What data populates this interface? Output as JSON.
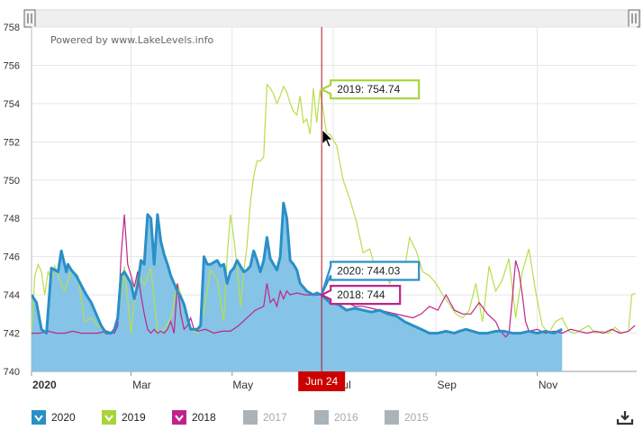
{
  "attribution": "Powered by www.LakeLevels.info",
  "navigator": {
    "left_handle": "navigator-left-handle",
    "right_handle": "navigator-right-handle"
  },
  "crosshair": {
    "date_label": "Jun 24"
  },
  "tooltips": [
    {
      "series": "2019",
      "text": "2019: 754.74",
      "color": "#a8d43a"
    },
    {
      "series": "2020",
      "text": "2020: 744.03",
      "color": "#2a8fc7"
    },
    {
      "series": "2018",
      "text": "2018: 744",
      "color": "#c0248a"
    }
  ],
  "legend": [
    {
      "label": "2020",
      "color": "#2a8fc7",
      "visible": true
    },
    {
      "label": "2019",
      "color": "#a8d43a",
      "visible": true
    },
    {
      "label": "2018",
      "color": "#c0248a",
      "visible": true
    },
    {
      "label": "2017",
      "color": "#aab3b8",
      "visible": false
    },
    {
      "label": "2016",
      "color": "#aab3b8",
      "visible": false
    },
    {
      "label": "2015",
      "color": "#aab3b8",
      "visible": false
    }
  ],
  "download_icon": "download-icon",
  "chart_data": {
    "type": "area",
    "title": "",
    "xlabel": "",
    "ylabel": "",
    "x_tick_labels": [
      "2020",
      "Mar",
      "May",
      "Jul",
      "Sep",
      "Nov"
    ],
    "x_tick_days": [
      0,
      60,
      121,
      182,
      244,
      305
    ],
    "xlim": [
      0,
      365
    ],
    "ylim": [
      740,
      758
    ],
    "y_ticks": [
      740,
      742,
      744,
      746,
      748,
      750,
      752,
      754,
      756,
      758
    ],
    "grid": true,
    "crosshair_day": 175,
    "series": [
      {
        "name": "2020",
        "type": "area",
        "color": "#2a8fc7",
        "fill": "#85c4e6",
        "x": [
          0,
          3,
          6,
          9,
          12,
          16,
          18,
          21,
          22,
          24,
          27,
          30,
          33,
          36,
          39,
          42,
          45,
          48,
          50,
          52,
          54,
          56,
          60,
          62,
          64,
          66,
          68,
          70,
          72,
          74,
          76,
          78,
          80,
          82,
          84,
          86,
          88,
          90,
          92,
          94,
          96,
          98,
          100,
          102,
          104,
          106,
          108,
          110,
          112,
          114,
          116,
          118,
          120,
          122,
          124,
          126,
          128,
          130,
          132,
          134,
          136,
          138,
          140,
          142,
          144,
          146,
          148,
          150,
          152,
          154,
          156,
          158,
          160,
          162,
          164,
          166,
          168,
          170,
          172,
          175,
          180,
          185,
          190,
          195,
          200,
          205,
          210,
          215,
          220,
          225,
          230,
          235,
          240,
          245,
          250,
          255,
          258,
          262,
          266,
          270,
          275,
          280,
          285,
          290,
          295,
          300,
          305,
          310,
          315,
          320
        ],
        "y": [
          744.0,
          743.6,
          742.2,
          742.0,
          745.4,
          745.2,
          746.3,
          745.2,
          745.6,
          745.3,
          745.0,
          744.5,
          744.0,
          743.6,
          743.0,
          742.4,
          742.0,
          742.0,
          742.2,
          742.8,
          745.0,
          745.2,
          744.6,
          743.8,
          744.5,
          745.8,
          745.6,
          748.2,
          748.0,
          745.6,
          748.2,
          746.8,
          746.1,
          745.6,
          745.0,
          744.6,
          744.2,
          743.9,
          743.5,
          742.8,
          742.2,
          742.2,
          742.2,
          742.4,
          746.0,
          745.6,
          745.6,
          745.7,
          745.8,
          745.5,
          745.6,
          744.6,
          745.2,
          745.4,
          745.8,
          745.5,
          745.2,
          745.3,
          745.5,
          746.3,
          745.8,
          745.2,
          745.8,
          747.0,
          745.9,
          745.6,
          745.3,
          746.0,
          748.8,
          748.0,
          745.8,
          745.6,
          745.3,
          744.6,
          744.4,
          744.2,
          744.1,
          744.0,
          744.1,
          744.0,
          743.6,
          743.5,
          743.2,
          743.3,
          743.2,
          743.1,
          743.2,
          743.0,
          742.9,
          742.6,
          742.4,
          742.2,
          742.0,
          742.0,
          742.1,
          742.0,
          742.1,
          742.2,
          742.1,
          742.0,
          742.0,
          742.1,
          742.1,
          742.0,
          742.0,
          742.1,
          742.0,
          742.1,
          742.0,
          742.2
        ]
      },
      {
        "name": "2019",
        "type": "line",
        "color": "#b6df4a",
        "x": [
          0,
          2,
          4,
          6,
          8,
          10,
          12,
          14,
          16,
          20,
          24,
          28,
          32,
          36,
          40,
          44,
          48,
          52,
          56,
          60,
          64,
          68,
          72,
          76,
          80,
          84,
          88,
          92,
          96,
          100,
          104,
          108,
          112,
          116,
          118,
          120,
          122,
          124,
          126,
          128,
          130,
          132,
          134,
          136,
          138,
          140,
          142,
          144,
          146,
          148,
          150,
          152,
          154,
          156,
          158,
          160,
          162,
          164,
          166,
          168,
          170,
          172,
          174,
          176,
          178,
          180,
          184,
          188,
          192,
          196,
          200,
          204,
          208,
          212,
          216,
          220,
          224,
          228,
          232,
          236,
          240,
          244,
          248,
          252,
          256,
          260,
          264,
          268,
          272,
          276,
          280,
          284,
          288,
          292,
          296,
          300,
          304,
          308,
          312,
          316,
          320,
          324,
          328,
          332,
          336,
          340,
          344,
          348,
          352,
          356,
          360,
          362,
          364
        ],
        "y": [
          742.0,
          745.0,
          745.6,
          745.2,
          744.0,
          745.2,
          744.8,
          745.5,
          745.0,
          744.2,
          745.3,
          745.0,
          742.6,
          742.8,
          742.4,
          742.2,
          742.0,
          742.6,
          745.5,
          742.0,
          745.2,
          744.5,
          745.4,
          742.0,
          742.2,
          742.8,
          744.6,
          743.5,
          742.2,
          742.0,
          743.2,
          745.3,
          744.8,
          742.6,
          746.0,
          748.2,
          747.0,
          745.5,
          743.4,
          745.2,
          746.6,
          748.8,
          750.2,
          751.0,
          751.0,
          751.2,
          755.0,
          754.8,
          754.5,
          754.0,
          754.4,
          754.9,
          754.6,
          754.0,
          753.6,
          753.4,
          754.4,
          753.0,
          753.2,
          752.4,
          754.8,
          753.0,
          754.7,
          753.6,
          752.4,
          752.4,
          751.8,
          750.0,
          749.0,
          747.8,
          746.2,
          746.4,
          745.2,
          745.4,
          744.6,
          745.5,
          744.8,
          747.0,
          746.3,
          745.2,
          745.0,
          744.6,
          744.0,
          743.5,
          743.0,
          742.8,
          743.2,
          744.6,
          742.6,
          745.5,
          744.2,
          744.8,
          745.9,
          742.8,
          745.2,
          746.4,
          744.2,
          742.4,
          742.0,
          742.6,
          742.8,
          742.1,
          742.0,
          742.2,
          742.4,
          742.0,
          742.1,
          742.0,
          742.3,
          742.0,
          742.1,
          744.0,
          744.1
        ]
      },
      {
        "name": "2018",
        "type": "line",
        "color": "#c0248a",
        "x": [
          0,
          5,
          10,
          15,
          20,
          25,
          30,
          35,
          40,
          45,
          50,
          52,
          54,
          56,
          58,
          60,
          62,
          64,
          66,
          68,
          70,
          72,
          74,
          76,
          78,
          80,
          82,
          84,
          86,
          88,
          90,
          92,
          94,
          96,
          98,
          100,
          105,
          110,
          115,
          120,
          125,
          130,
          135,
          140,
          142,
          144,
          146,
          148,
          150,
          152,
          154,
          156,
          160,
          165,
          170,
          175,
          180,
          185,
          190,
          195,
          200,
          205,
          210,
          215,
          220,
          225,
          230,
          235,
          240,
          245,
          250,
          255,
          260,
          265,
          270,
          275,
          280,
          282,
          284,
          286,
          288,
          290,
          292,
          294,
          296,
          298,
          300,
          305,
          310,
          315,
          320,
          325,
          330,
          335,
          340,
          345,
          350,
          355,
          360,
          364
        ],
        "y": [
          742.0,
          742.0,
          742.1,
          742.0,
          742.0,
          742.1,
          742.0,
          742.0,
          742.0,
          742.1,
          742.0,
          742.4,
          746.0,
          748.2,
          745.6,
          745.0,
          744.4,
          745.2,
          744.0,
          743.0,
          742.2,
          742.0,
          742.2,
          742.0,
          742.1,
          742.0,
          742.2,
          742.6,
          742.0,
          744.6,
          743.0,
          742.2,
          742.4,
          742.8,
          742.2,
          742.1,
          742.2,
          742.0,
          742.1,
          742.1,
          742.4,
          742.8,
          743.2,
          743.4,
          744.6,
          743.6,
          743.8,
          743.4,
          744.2,
          743.8,
          744.2,
          744.0,
          744.1,
          744.0,
          744.0,
          744.0,
          744.0,
          743.9,
          743.6,
          743.4,
          743.4,
          743.3,
          743.2,
          743.1,
          743.0,
          742.9,
          742.8,
          743.0,
          743.4,
          743.2,
          744.0,
          743.2,
          743.0,
          743.0,
          743.6,
          743.0,
          742.6,
          742.2,
          742.0,
          741.8,
          742.0,
          743.8,
          745.8,
          745.2,
          744.0,
          742.6,
          742.1,
          742.2,
          742.0,
          742.1,
          742.0,
          742.2,
          742.1,
          742.0,
          742.1,
          742.0,
          742.2,
          742.0,
          742.1,
          742.4
        ]
      }
    ]
  }
}
